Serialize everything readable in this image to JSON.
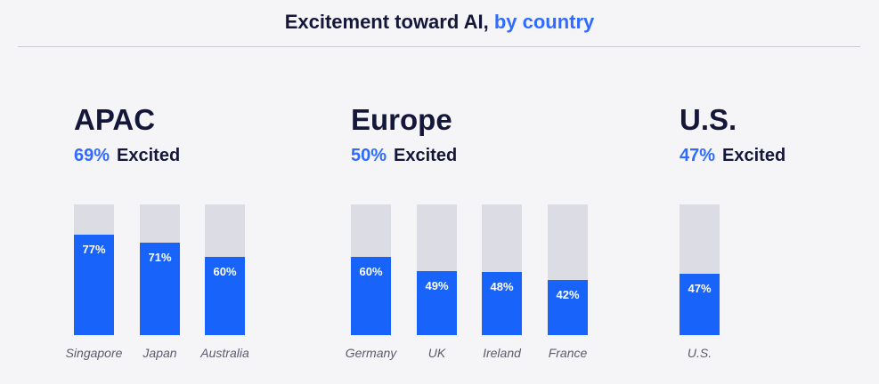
{
  "header": {
    "title_main": "Excitement toward AI,",
    "title_accent": "by country"
  },
  "colors": {
    "accent": "#2f6bff",
    "bar_fill": "#1863fa",
    "bar_track": "#dcdde4",
    "text_dark": "#14173a"
  },
  "regions": [
    {
      "name": "APAC",
      "percent": "69%",
      "label": "Excited"
    },
    {
      "name": "Europe",
      "percent": "50%",
      "label": "Excited"
    },
    {
      "name": "U.S.",
      "percent": "47%",
      "label": "Excited"
    }
  ],
  "chart_data": {
    "type": "bar",
    "title": "Excitement toward AI, by country",
    "ylim": [
      0,
      100
    ],
    "unit": "%",
    "grid": false,
    "categories": [
      "Singapore",
      "Japan",
      "Australia",
      "Germany",
      "UK",
      "Ireland",
      "France",
      "U.S."
    ],
    "values": [
      77,
      71,
      60,
      60,
      49,
      48,
      42,
      47
    ],
    "value_labels": [
      "77%",
      "71%",
      "60%",
      "60%",
      "49%",
      "48%",
      "42%",
      "47%"
    ],
    "groups": [
      {
        "name": "APAC",
        "summary": "69%",
        "categories": [
          "Singapore",
          "Japan",
          "Australia"
        ]
      },
      {
        "name": "Europe",
        "summary": "50%",
        "categories": [
          "Germany",
          "UK",
          "Ireland",
          "France"
        ]
      },
      {
        "name": "U.S.",
        "summary": "47%",
        "categories": [
          "U.S."
        ]
      }
    ]
  }
}
